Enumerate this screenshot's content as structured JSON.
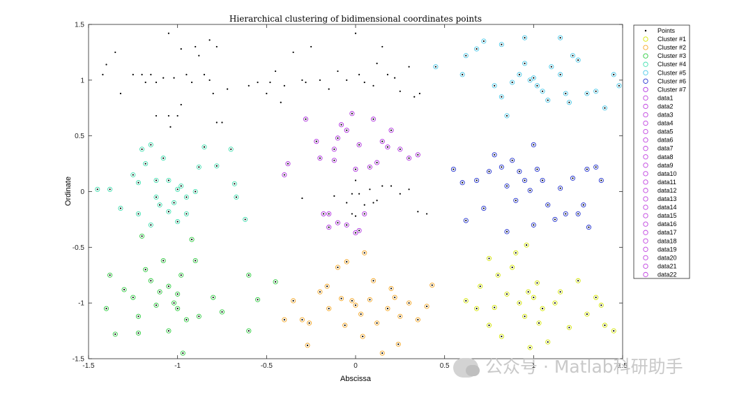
{
  "chart_data": {
    "type": "scatter",
    "title": "Hierarchical clustering of bidimensional coordinates points",
    "xlabel": "Abscissa",
    "ylabel": "Ordinate",
    "xlim": [
      -1.5,
      1.5
    ],
    "ylim": [
      -1.5,
      1.5
    ],
    "xticks": [
      "-1.5",
      "-1",
      "-0.5",
      "0",
      "0.5",
      "1",
      "1.5"
    ],
    "yticks": [
      "1.5",
      "1",
      "0.5",
      "0",
      "-0.5",
      "-1",
      "-1.5"
    ],
    "grid": false,
    "legend_position": "outside-right",
    "legend": [
      "Points",
      "Cluster #1",
      "Cluster #2",
      "Cluster #3",
      "Cluster #4",
      "Cluster #5",
      "Cluster #6",
      "Cluster #7",
      "data1",
      "data2",
      "data3",
      "data4",
      "data5",
      "data6",
      "data7",
      "data8",
      "data9",
      "data10",
      "data11",
      "data12",
      "data13",
      "data14",
      "data15",
      "data16",
      "data17",
      "data18",
      "data19",
      "data20",
      "data21",
      "data22"
    ],
    "series": [
      {
        "name": "Cluster #1",
        "color": "#d4e600",
        "points": [
          [
            0.75,
            -0.6
          ],
          [
            0.8,
            -0.75
          ],
          [
            0.9,
            -0.55
          ],
          [
            0.96,
            -0.48
          ],
          [
            0.7,
            -0.85
          ],
          [
            0.85,
            -0.92
          ],
          [
            0.92,
            -1.0
          ],
          [
            0.97,
            -0.9
          ],
          [
            1.0,
            -0.95
          ],
          [
            1.05,
            -1.05
          ],
          [
            0.95,
            -1.12
          ],
          [
            0.68,
            -1.05
          ],
          [
            0.62,
            -0.98
          ],
          [
            0.75,
            -1.2
          ],
          [
            0.82,
            -1.3
          ],
          [
            0.98,
            -1.4
          ],
          [
            1.08,
            -1.35
          ],
          [
            1.2,
            -1.22
          ],
          [
            1.3,
            -1.1
          ],
          [
            1.35,
            -0.95
          ],
          [
            1.25,
            -0.8
          ],
          [
            1.15,
            -0.9
          ],
          [
            1.4,
            -1.2
          ],
          [
            1.45,
            -1.25
          ],
          [
            1.38,
            -1.02
          ],
          [
            1.12,
            -1.0
          ],
          [
            1.02,
            -0.82
          ],
          [
            0.88,
            -0.68
          ],
          [
            1.03,
            -1.18
          ],
          [
            0.78,
            -1.04
          ]
        ]
      },
      {
        "name": "Cluster #2",
        "color": "#f5a623",
        "points": [
          [
            -0.3,
            -1.15
          ],
          [
            -0.27,
            -1.38
          ],
          [
            -0.26,
            -1.18
          ],
          [
            -0.2,
            -0.9
          ],
          [
            -0.1,
            -0.68
          ],
          [
            -0.15,
            -1.05
          ],
          [
            -0.16,
            -0.85
          ],
          [
            -0.05,
            -0.63
          ],
          [
            -0.02,
            -0.98
          ],
          [
            0.05,
            -0.55
          ],
          [
            0.0,
            -1.02
          ],
          [
            0.03,
            -1.1
          ],
          [
            0.08,
            -0.97
          ],
          [
            0.12,
            -1.18
          ],
          [
            0.15,
            -1.45
          ],
          [
            0.2,
            -0.87
          ],
          [
            0.22,
            -0.95
          ],
          [
            0.25,
            -1.12
          ],
          [
            0.3,
            -1.0
          ],
          [
            0.35,
            -1.15
          ],
          [
            0.4,
            -1.03
          ],
          [
            0.43,
            -0.84
          ],
          [
            -0.4,
            -1.15
          ],
          [
            -0.35,
            -0.98
          ],
          [
            -0.06,
            -1.2
          ],
          [
            0.04,
            -1.3
          ],
          [
            0.18,
            -1.05
          ],
          [
            0.24,
            -1.37
          ],
          [
            -0.08,
            -0.96
          ],
          [
            0.1,
            -0.8
          ]
        ]
      },
      {
        "name": "Cluster #3",
        "color": "#2ecc40",
        "points": [
          [
            -1.4,
            -1.05
          ],
          [
            -1.38,
            -0.75
          ],
          [
            -1.35,
            -1.28
          ],
          [
            -1.3,
            -0.88
          ],
          [
            -1.25,
            -0.95
          ],
          [
            -1.22,
            -1.12
          ],
          [
            -1.2,
            -0.4
          ],
          [
            -1.18,
            -0.7
          ],
          [
            -1.15,
            -0.8
          ],
          [
            -1.1,
            -0.9
          ],
          [
            -1.05,
            -0.85
          ],
          [
            -1.02,
            -1.0
          ],
          [
            -1.0,
            -0.92
          ],
          [
            -0.98,
            -0.75
          ],
          [
            -0.95,
            -1.15
          ],
          [
            -0.9,
            -0.62
          ],
          [
            -0.88,
            -1.12
          ],
          [
            -0.8,
            -0.95
          ],
          [
            -0.75,
            -1.08
          ],
          [
            -0.6,
            -0.75
          ],
          [
            -0.55,
            -0.97
          ],
          [
            -0.45,
            -0.81
          ],
          [
            -1.08,
            -0.62
          ],
          [
            -0.97,
            -1.45
          ],
          [
            -1.0,
            -1.05
          ],
          [
            -0.92,
            -0.43
          ],
          [
            -1.05,
            -1.25
          ],
          [
            -1.22,
            -1.27
          ],
          [
            -0.6,
            -1.25
          ],
          [
            -1.12,
            -1.02
          ]
        ]
      },
      {
        "name": "Cluster #4",
        "color": "#40e0b0",
        "points": [
          [
            -1.45,
            0.02
          ],
          [
            -1.38,
            0.02
          ],
          [
            -1.32,
            -0.15
          ],
          [
            -1.25,
            0.15
          ],
          [
            -1.22,
            0.08
          ],
          [
            -1.2,
            0.38
          ],
          [
            -1.18,
            0.25
          ],
          [
            -1.15,
            0.42
          ],
          [
            -1.12,
            -0.05
          ],
          [
            -1.1,
            -0.12
          ],
          [
            -1.05,
            0.1
          ],
          [
            -1.05,
            -0.18
          ],
          [
            -1.02,
            -0.1
          ],
          [
            -1.0,
            0.02
          ],
          [
            -0.98,
            0.05
          ],
          [
            -0.95,
            -0.05
          ],
          [
            -0.9,
            0.0
          ],
          [
            -0.88,
            0.22
          ],
          [
            -0.85,
            0.4
          ],
          [
            -0.7,
            0.38
          ],
          [
            -0.68,
            0.07
          ],
          [
            -0.62,
            -0.25
          ],
          [
            -1.22,
            -0.2
          ],
          [
            -1.15,
            -0.3
          ],
          [
            -1.08,
            0.3
          ],
          [
            -0.95,
            -0.2
          ],
          [
            -0.78,
            0.23
          ],
          [
            -0.67,
            -0.05
          ],
          [
            -1.0,
            -0.27
          ],
          [
            -1.12,
            0.1
          ]
        ]
      },
      {
        "name": "Cluster #5",
        "color": "#48c8e8",
        "points": [
          [
            0.45,
            1.12
          ],
          [
            0.6,
            1.05
          ],
          [
            0.62,
            1.22
          ],
          [
            0.68,
            1.28
          ],
          [
            0.72,
            1.35
          ],
          [
            0.78,
            0.95
          ],
          [
            0.82,
            0.85
          ],
          [
            0.85,
            0.68
          ],
          [
            0.88,
            0.98
          ],
          [
            0.92,
            1.05
          ],
          [
            0.95,
            1.15
          ],
          [
            0.98,
            1.0
          ],
          [
            1.0,
            1.02
          ],
          [
            1.02,
            0.95
          ],
          [
            1.05,
            0.9
          ],
          [
            1.08,
            0.82
          ],
          [
            1.1,
            1.12
          ],
          [
            1.15,
            1.05
          ],
          [
            1.18,
            0.88
          ],
          [
            1.2,
            0.8
          ],
          [
            1.22,
            1.22
          ],
          [
            1.25,
            1.18
          ],
          [
            1.3,
            0.88
          ],
          [
            1.35,
            0.9
          ],
          [
            1.4,
            0.75
          ],
          [
            1.45,
            1.05
          ],
          [
            1.48,
            0.95
          ],
          [
            0.95,
            1.38
          ],
          [
            1.15,
            1.38
          ],
          [
            0.82,
            1.32
          ]
        ]
      },
      {
        "name": "Cluster #6",
        "color": "#2030d0",
        "points": [
          [
            0.55,
            0.2
          ],
          [
            0.6,
            0.08
          ],
          [
            0.62,
            -0.26
          ],
          [
            0.68,
            0.1
          ],
          [
            0.72,
            -0.15
          ],
          [
            0.75,
            0.18
          ],
          [
            0.78,
            0.33
          ],
          [
            0.82,
            0.22
          ],
          [
            0.85,
            0.05
          ],
          [
            0.88,
            0.28
          ],
          [
            0.9,
            -0.08
          ],
          [
            0.92,
            0.18
          ],
          [
            0.95,
            0.1
          ],
          [
            0.98,
            0.01
          ],
          [
            1.0,
            0.42
          ],
          [
            1.02,
            0.2
          ],
          [
            1.05,
            0.1
          ],
          [
            1.08,
            -0.12
          ],
          [
            1.12,
            -0.25
          ],
          [
            1.15,
            0.03
          ],
          [
            1.18,
            -0.2
          ],
          [
            1.22,
            0.12
          ],
          [
            1.25,
            -0.2
          ],
          [
            1.28,
            -0.12
          ],
          [
            1.3,
            0.2
          ],
          [
            1.35,
            0.22
          ],
          [
            1.38,
            0.1
          ],
          [
            0.85,
            -0.36
          ],
          [
            1.0,
            -0.3
          ],
          [
            1.31,
            -0.32
          ]
        ]
      },
      {
        "name": "Cluster #7",
        "color": "#b030e0",
        "points": [
          [
            -0.4,
            0.15
          ],
          [
            -0.38,
            0.25
          ],
          [
            -0.28,
            0.65
          ],
          [
            -0.22,
            0.45
          ],
          [
            -0.2,
            0.3
          ],
          [
            -0.18,
            -0.2
          ],
          [
            -0.15,
            -0.2
          ],
          [
            -0.12,
            0.28
          ],
          [
            -0.1,
            0.48
          ],
          [
            -0.08,
            0.6
          ],
          [
            -0.05,
            0.55
          ],
          [
            -0.02,
            0.7
          ],
          [
            0.0,
            0.2
          ],
          [
            0.02,
            0.42
          ],
          [
            0.1,
            0.65
          ],
          [
            0.15,
            0.45
          ],
          [
            0.18,
            0.4
          ],
          [
            0.2,
            0.55
          ],
          [
            0.25,
            0.38
          ],
          [
            0.3,
            0.3
          ],
          [
            0.35,
            0.33
          ],
          [
            -0.15,
            -0.32
          ],
          [
            -0.1,
            -0.28
          ],
          [
            -0.05,
            -0.3
          ],
          [
            0.0,
            -0.37
          ],
          [
            0.02,
            -0.35
          ],
          [
            0.05,
            -0.2
          ],
          [
            0.08,
            0.22
          ],
          [
            -0.12,
            0.38
          ],
          [
            0.12,
            0.26
          ]
        ]
      },
      {
        "name": "Points",
        "color": "#000000",
        "points": [
          [
            -1.42,
            1.05
          ],
          [
            -1.4,
            1.14
          ],
          [
            -1.35,
            1.25
          ],
          [
            -1.32,
            0.88
          ],
          [
            -1.25,
            1.05
          ],
          [
            -1.2,
            1.05
          ],
          [
            -1.18,
            0.98
          ],
          [
            -1.15,
            1.05
          ],
          [
            -1.12,
            0.98
          ],
          [
            -1.12,
            0.68
          ],
          [
            -1.08,
            1.02
          ],
          [
            -1.05,
            0.68
          ],
          [
            -1.04,
            0.58
          ],
          [
            -1.02,
            1.02
          ],
          [
            -1.0,
            0.68
          ],
          [
            -0.98,
            0.78
          ],
          [
            -0.95,
            1.05
          ],
          [
            -0.92,
            0.98
          ],
          [
            -0.9,
            1.3
          ],
          [
            -0.85,
            1.05
          ],
          [
            -0.82,
            1.0
          ],
          [
            -0.8,
            0.88
          ],
          [
            -0.78,
            0.62
          ],
          [
            -0.75,
            0.62
          ],
          [
            -0.72,
            0.92
          ],
          [
            -1.05,
            1.42
          ],
          [
            -0.98,
            1.28
          ],
          [
            -0.88,
            1.22
          ],
          [
            -0.82,
            1.36
          ],
          [
            -0.78,
            1.3
          ],
          [
            -0.6,
            0.95
          ],
          [
            -0.55,
            0.98
          ],
          [
            -0.5,
            0.88
          ],
          [
            -0.48,
            0.98
          ],
          [
            -0.45,
            1.08
          ],
          [
            -0.42,
            0.8
          ],
          [
            -0.4,
            0.95
          ],
          [
            -0.35,
            1.25
          ],
          [
            -0.3,
            1.0
          ],
          [
            -0.28,
            0.98
          ],
          [
            -0.25,
            1.3
          ],
          [
            -0.2,
            1.0
          ],
          [
            -0.15,
            0.92
          ],
          [
            -0.1,
            1.08
          ],
          [
            -0.05,
            1.0
          ],
          [
            0.0,
            1.42
          ],
          [
            0.02,
            1.05
          ],
          [
            0.05,
            0.98
          ],
          [
            0.1,
            0.95
          ],
          [
            0.12,
            1.15
          ],
          [
            0.15,
            1.3
          ],
          [
            0.18,
            1.05
          ],
          [
            0.22,
            1.02
          ],
          [
            0.25,
            0.9
          ],
          [
            0.3,
            1.12
          ],
          [
            0.33,
            0.85
          ],
          [
            0.36,
            0.88
          ],
          [
            -0.3,
            -0.06
          ],
          [
            -0.12,
            -0.04
          ],
          [
            -0.05,
            -0.1
          ],
          [
            -0.02,
            -0.02
          ],
          [
            0.0,
            0.1
          ],
          [
            0.02,
            -0.02
          ],
          [
            0.05,
            -0.12
          ],
          [
            0.08,
            0.02
          ],
          [
            0.1,
            -0.1
          ],
          [
            0.12,
            -0.08
          ],
          [
            0.15,
            0.05
          ],
          [
            0.2,
            0.05
          ],
          [
            0.25,
            -0.02
          ],
          [
            0.3,
            0.02
          ],
          [
            0.35,
            -0.18
          ],
          [
            0.4,
            -0.2
          ],
          [
            -0.02,
            -0.2
          ],
          [
            0.0,
            -0.22
          ]
        ]
      }
    ]
  },
  "watermark": {
    "text": "公众号 · Matlab科研助手",
    "icon": "wechat-icon"
  }
}
